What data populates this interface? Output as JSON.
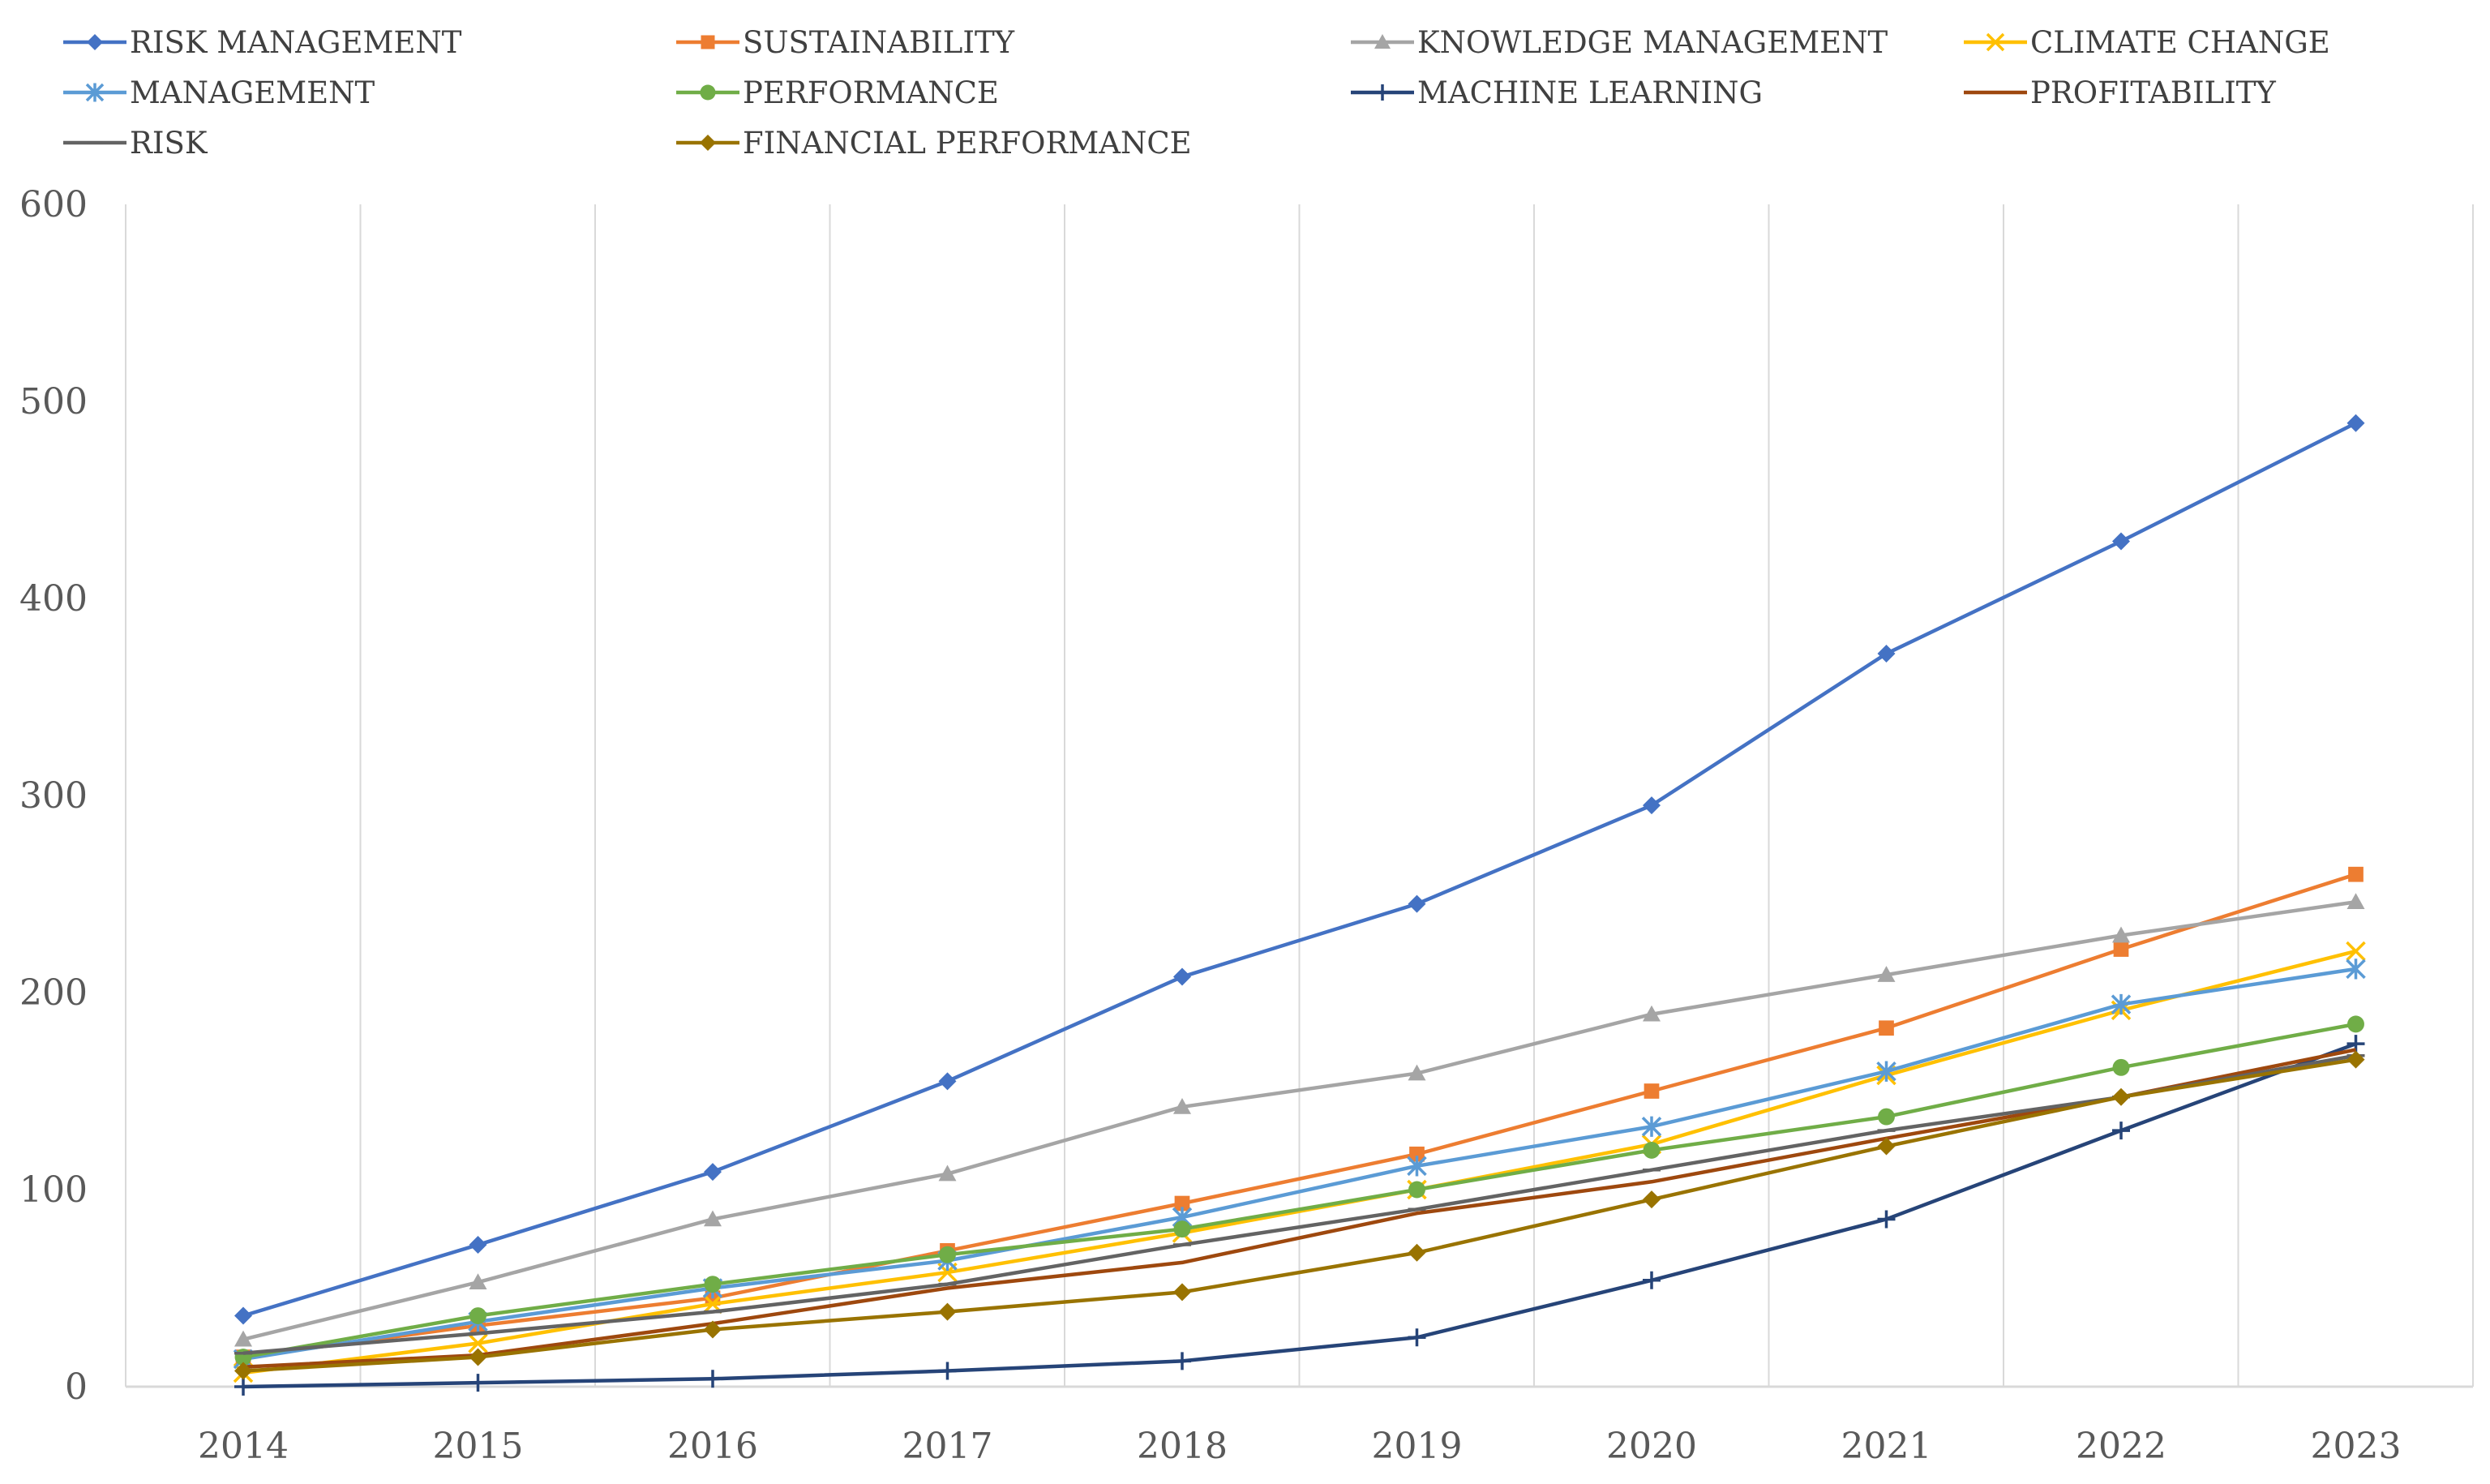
{
  "chart_data": {
    "type": "line",
    "title": "",
    "xlabel": "",
    "ylabel": "",
    "x": [
      2014,
      2015,
      2016,
      2017,
      2018,
      2019,
      2020,
      2021,
      2022,
      2023
    ],
    "x_tick_labels": [
      "2014",
      "2015",
      "2016",
      "2017",
      "2018",
      "2019",
      "2020",
      "2021",
      "2022",
      "2023"
    ],
    "ylim": [
      0,
      600
    ],
    "y_ticks": [
      0,
      100,
      200,
      300,
      400,
      500,
      600
    ],
    "y_tick_labels": [
      "0",
      "100",
      "200",
      "300",
      "400",
      "500",
      "600"
    ],
    "grid": "vertical",
    "legend_position": "top",
    "series": [
      {
        "name": "RISK MANAGEMENT",
        "color": "#4472C4",
        "marker": "diamond",
        "values": [
          36,
          72,
          109,
          155,
          208,
          245,
          295,
          372,
          429,
          489
        ]
      },
      {
        "name": "SUSTAINABILITY",
        "color": "#ED7D31",
        "marker": "square",
        "values": [
          15,
          31,
          45,
          69,
          93,
          118,
          150,
          182,
          222,
          260
        ]
      },
      {
        "name": "KNOWLEDGE MANAGEMENT",
        "color": "#A5A5A5",
        "marker": "triangle",
        "values": [
          24,
          53,
          85,
          108,
          142,
          159,
          189,
          209,
          229,
          246
        ]
      },
      {
        "name": "CLIMATE CHANGE",
        "color": "#FFC000",
        "marker": "x",
        "values": [
          7,
          22,
          42,
          58,
          78,
          100,
          123,
          158,
          191,
          221
        ]
      },
      {
        "name": "MANAGEMENT",
        "color": "#5B9BD5",
        "marker": "star",
        "values": [
          14,
          33,
          50,
          64,
          86,
          112,
          132,
          160,
          194,
          212
        ]
      },
      {
        "name": "PERFORMANCE",
        "color": "#70AD47",
        "marker": "circle",
        "values": [
          15,
          36,
          52,
          67,
          80,
          100,
          120,
          137,
          162,
          184
        ]
      },
      {
        "name": "MACHINE LEARNING",
        "color": "#264478",
        "marker": "plus",
        "values": [
          0,
          2,
          4,
          8,
          13,
          25,
          54,
          85,
          130,
          174
        ]
      },
      {
        "name": "PROFITABILITY",
        "color": "#9E480E",
        "marker": "none",
        "values": [
          10,
          16,
          32,
          50,
          63,
          88,
          104,
          126,
          147,
          171
        ]
      },
      {
        "name": "RISK",
        "color": "#636363",
        "marker": "dash",
        "values": [
          17,
          27,
          38,
          52,
          72,
          90,
          110,
          130,
          147,
          168
        ]
      },
      {
        "name": "FINANCIAL PERFORMANCE",
        "color": "#997300",
        "marker": "diamond",
        "values": [
          8,
          15,
          29,
          38,
          48,
          68,
          95,
          122,
          147,
          166
        ]
      }
    ]
  }
}
